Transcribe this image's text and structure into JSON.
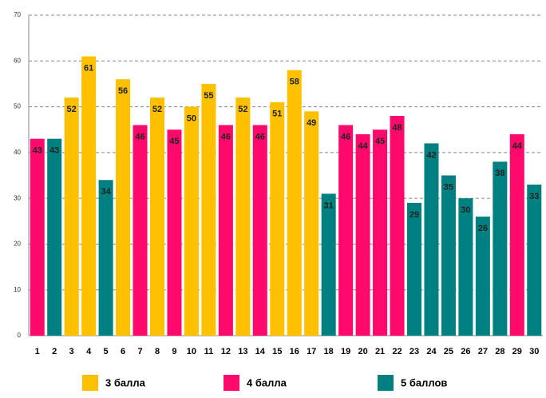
{
  "chart_data": {
    "type": "bar",
    "categories": [
      "1",
      "2",
      "3",
      "4",
      "5",
      "6",
      "7",
      "8",
      "9",
      "10",
      "11",
      "12",
      "13",
      "14",
      "15",
      "16",
      "17",
      "18",
      "19",
      "20",
      "21",
      "22",
      "23",
      "24",
      "25",
      "26",
      "27",
      "28",
      "29",
      "30"
    ],
    "series": [
      {
        "name": "3 балла",
        "color": "#FFC000",
        "values": [
          null,
          null,
          52,
          61,
          null,
          56,
          null,
          52,
          null,
          50,
          55,
          null,
          52,
          null,
          51,
          58,
          49,
          null,
          null,
          null,
          null,
          null,
          null,
          null,
          null,
          null,
          null,
          null,
          null,
          null
        ]
      },
      {
        "name": "4 балла",
        "color": "#FF0A6C",
        "values": [
          43,
          null,
          null,
          null,
          null,
          null,
          46,
          null,
          45,
          null,
          null,
          46,
          null,
          46,
          null,
          null,
          null,
          null,
          46,
          44,
          45,
          48,
          null,
          null,
          null,
          null,
          null,
          null,
          44,
          null
        ]
      },
      {
        "name": "5 баллов",
        "color": "#008080",
        "values": [
          null,
          43,
          null,
          null,
          34,
          null,
          null,
          null,
          null,
          null,
          null,
          null,
          null,
          null,
          null,
          null,
          null,
          31,
          null,
          null,
          null,
          null,
          29,
          42,
          35,
          30,
          26,
          38,
          null,
          33
        ]
      }
    ],
    "ylim": [
      0,
      70
    ],
    "yticks": [
      0,
      10,
      20,
      30,
      40,
      50,
      60,
      70
    ],
    "grid": true
  }
}
